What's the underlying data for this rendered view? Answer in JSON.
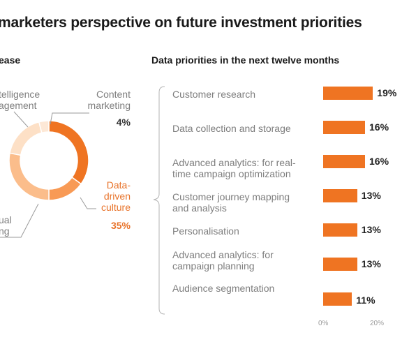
{
  "title": "marketers perspective on future investment priorities",
  "left_panel": {
    "heading": "ease",
    "labels": {
      "intelligence_line1": "telligence",
      "intelligence_line2": "agement",
      "content_line1": "Content",
      "content_line2": "marketing",
      "content_pct": "4%",
      "culture_line1": "Data-",
      "culture_line2": "driven",
      "culture_line3": "culture",
      "culture_pct": "35%",
      "visual_line1": "ual",
      "visual_line2": "ng"
    },
    "colors": {
      "dark_orange": "#ef7422",
      "mid_orange": "#f89a55",
      "light_orange": "#fbbd8b",
      "pale_orange": "#fde0c6"
    }
  },
  "right_panel": {
    "heading": "Data priorities in the next twelve months"
  },
  "chart_data": [
    {
      "type": "pie",
      "title": "",
      "slices": [
        {
          "label": "Data-driven culture",
          "value": 35,
          "color": "#ef7422"
        },
        {
          "label": "",
          "value": 15,
          "color": "#f89a55"
        },
        {
          "label": "",
          "value": 28,
          "color": "#fbbd8b"
        },
        {
          "label": "",
          "value": 18,
          "color": "#fde0c6"
        },
        {
          "label": "Content marketing",
          "value": 4,
          "color": "#fde8d6"
        }
      ]
    },
    {
      "type": "bar",
      "orientation": "horizontal",
      "title": "Data priorities in the next twelve months",
      "categories": [
        "Customer research",
        "Data collection and storage",
        "Advanced analytics: for real-time campaign optimization",
        "Customer journey mapping and analysis",
        "Personalisation",
        "Advanced analytics: for campaign planning",
        "Audience segmentation"
      ],
      "values": [
        19,
        16,
        16,
        13,
        13,
        13,
        11
      ],
      "value_labels": [
        "19%",
        "16%",
        "16%",
        "13%",
        "13%",
        "13%",
        "11%"
      ],
      "xlim": [
        0,
        20
      ],
      "xticks": [
        "0%",
        "20%"
      ],
      "color": "#ef7422"
    }
  ]
}
